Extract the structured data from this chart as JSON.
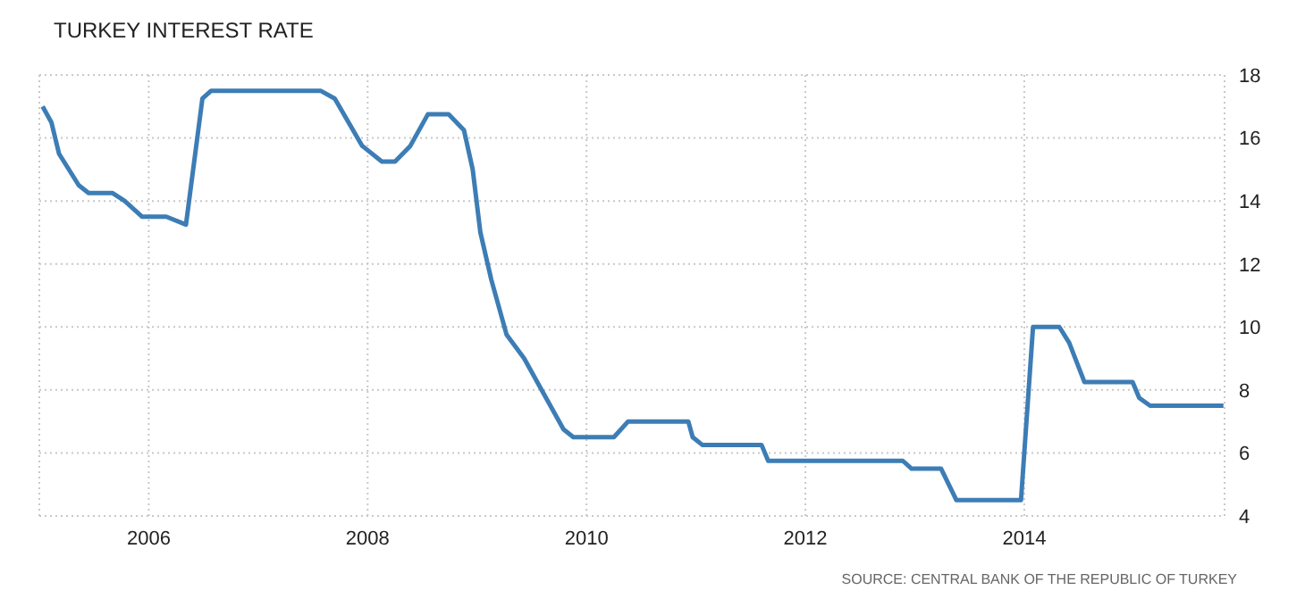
{
  "chart_data": {
    "type": "line",
    "title": "TURKEY INTEREST RATE",
    "annotations": [
      "SOURCE: CENTRAL BANK OF THE REPUBLIC OF TURKEY"
    ],
    "x": [
      2005.03,
      2005.11,
      2005.18,
      2005.36,
      2005.45,
      2005.67,
      2005.78,
      2005.94,
      2006.16,
      2006.34,
      2006.49,
      2006.57,
      2007.57,
      2007.7,
      2007.95,
      2008.13,
      2008.25,
      2008.39,
      2008.55,
      2008.74,
      2008.88,
      2008.96,
      2009.03,
      2009.13,
      2009.27,
      2009.43,
      2009.63,
      2009.79,
      2009.88,
      2010.25,
      2010.38,
      2010.93,
      2010.97,
      2011.06,
      2011.6,
      2011.66,
      2012.57,
      2012.89,
      2012.97,
      2013.24,
      2013.38,
      2013.97,
      2014.08,
      2014.32,
      2014.41,
      2014.55,
      2014.99,
      2015.05,
      2015.15,
      2015.82
    ],
    "series": [
      {
        "color": "#3d7db5",
        "values": [
          17.0,
          16.5,
          15.5,
          14.5,
          14.25,
          14.25,
          14.0,
          13.5,
          13.5,
          13.25,
          17.25,
          17.5,
          17.5,
          17.25,
          15.75,
          15.25,
          15.25,
          15.75,
          16.75,
          16.75,
          16.25,
          15.0,
          13.0,
          11.5,
          9.75,
          9.0,
          7.75,
          6.75,
          6.5,
          6.5,
          7.0,
          7.0,
          6.5,
          6.25,
          6.25,
          5.75,
          5.75,
          5.75,
          5.5,
          5.5,
          4.5,
          4.5,
          10.0,
          10.0,
          9.5,
          8.25,
          8.25,
          7.75,
          7.5,
          7.5
        ]
      }
    ],
    "xlim": [
      2005.0,
      2015.83
    ],
    "xticks": [
      2006,
      2008,
      2010,
      2012,
      2014
    ],
    "ylim": [
      4,
      18
    ],
    "yticks": [
      4,
      6,
      8,
      10,
      12,
      14,
      16,
      18
    ],
    "grid": true
  }
}
